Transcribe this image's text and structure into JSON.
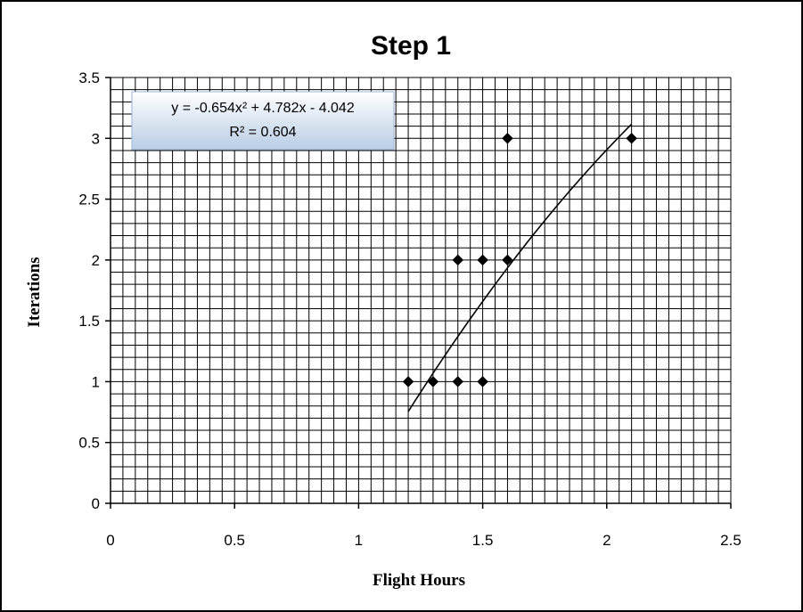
{
  "chart_data": {
    "type": "scatter",
    "title": "Step 1",
    "xlabel": "Flight Hours",
    "ylabel": "Iterations",
    "xlim": [
      0,
      2.5
    ],
    "ylim": [
      0,
      3.5
    ],
    "xticks": [
      "0",
      "0.5",
      "1",
      "1.5",
      "2",
      "2.5"
    ],
    "yticks": [
      "0",
      "0.5",
      "1",
      "1.5",
      "2",
      "2.5",
      "3",
      "3.5"
    ],
    "grid": true,
    "legend": "none",
    "series": [
      {
        "points": [
          {
            "x": 1.2,
            "y": 1
          },
          {
            "x": 1.3,
            "y": 1
          },
          {
            "x": 1.4,
            "y": 1
          },
          {
            "x": 1.5,
            "y": 1
          },
          {
            "x": 1.4,
            "y": 2
          },
          {
            "x": 1.5,
            "y": 2
          },
          {
            "x": 1.6,
            "y": 2
          },
          {
            "x": 1.6,
            "y": 3
          },
          {
            "x": 2.1,
            "y": 3
          }
        ]
      }
    ],
    "trendline": {
      "type": "polynomial",
      "coefficients": [
        -0.654,
        4.782,
        -4.042
      ],
      "x_range": [
        1.2,
        2.1
      ],
      "equation": "y = -0.654x² + 4.782x - 4.042",
      "r_squared": "R² = 0.604"
    },
    "colors": {
      "marker": "#000000",
      "grid": "#000000",
      "equation_box_top": "#ffffff",
      "equation_box_bottom": "#b9cde5"
    }
  }
}
